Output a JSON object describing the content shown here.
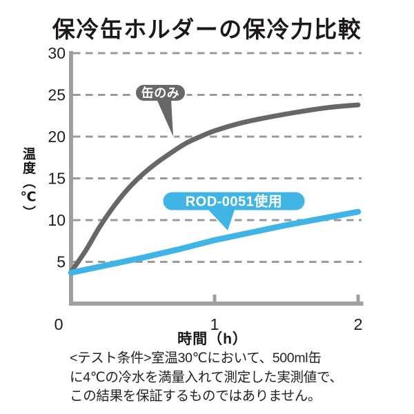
{
  "chart_data": {
    "type": "line",
    "title": "保冷缶ホルダーの保冷力比較",
    "xlabel": "時間（h）",
    "ylabel": "温度（℃）",
    "xlim": [
      0,
      2
    ],
    "ylim": [
      0,
      30
    ],
    "xticks": [
      {
        "value": 0,
        "label": "0"
      },
      {
        "value": 1,
        "label": "1"
      },
      {
        "value": 2,
        "label": "2"
      }
    ],
    "yticks": [
      {
        "value": 5,
        "label": "5"
      },
      {
        "value": 10,
        "label": "10"
      },
      {
        "value": 15,
        "label": "15"
      },
      {
        "value": 20,
        "label": "20"
      },
      {
        "value": 25,
        "label": "25"
      },
      {
        "value": 30,
        "label": "30"
      }
    ],
    "grid": {
      "horizontal_dashed": true,
      "color": "#999999"
    },
    "axis_color": "#a0a0a0",
    "tick_label_color": "#1d1d1d",
    "legend_position": "callout-bubbles-on-lines",
    "series": [
      {
        "name": "缶のみ",
        "color": "#676767",
        "line_width": 7,
        "smooth": true,
        "points": [
          [
            0,
            3.8
          ],
          [
            0.1,
            6.3
          ],
          [
            0.2,
            9.2
          ],
          [
            0.3,
            11.7
          ],
          [
            0.4,
            13.8
          ],
          [
            0.5,
            15.5
          ],
          [
            0.6,
            16.9
          ],
          [
            0.7,
            18.1
          ],
          [
            0.8,
            19.2
          ],
          [
            0.9,
            20.0
          ],
          [
            1.0,
            20.7
          ],
          [
            1.2,
            21.7
          ],
          [
            1.4,
            22.4
          ],
          [
            1.6,
            23.0
          ],
          [
            1.8,
            23.5
          ],
          [
            2.0,
            23.8
          ]
        ]
      },
      {
        "name": "ROD-0051使用",
        "color": "#41b4e6",
        "line_width": 8.5,
        "smooth": false,
        "points": [
          [
            0,
            3.7
          ],
          [
            0.25,
            4.6
          ],
          [
            0.5,
            5.5
          ],
          [
            0.75,
            6.5
          ],
          [
            1.0,
            7.6
          ],
          [
            1.25,
            8.5
          ],
          [
            1.5,
            9.4
          ],
          [
            1.75,
            10.2
          ],
          [
            2.0,
            11.0
          ]
        ]
      }
    ],
    "annotations": [
      {
        "text": "缶のみ",
        "series": 0,
        "text_color": "#ffffff"
      },
      {
        "text": "ROD-0051使用",
        "series": 1,
        "text_color": "#ffffff"
      }
    ]
  },
  "footnote": {
    "lines": [
      "<テスト条件>室温30℃において、500ml缶",
      "に4℃の冷水を満量入れて測定した実測値で、",
      "この結果を保証するものではありません。"
    ]
  }
}
